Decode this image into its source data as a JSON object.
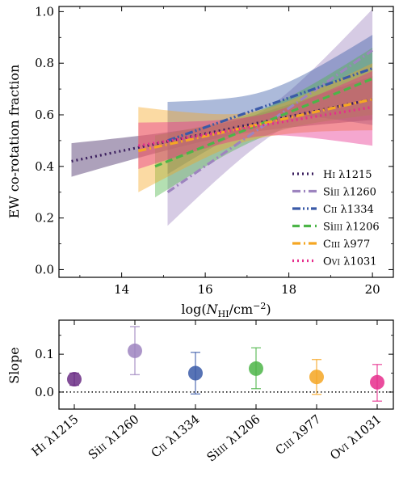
{
  "chart_data": [
    {
      "type": "line",
      "xlabel": "log(N_HI/cm^-2)",
      "ylabel": "EW co-rotation fraction",
      "xlim": [
        12.5,
        20.5
      ],
      "ylim": [
        -0.03,
        1.02
      ],
      "xticks": [
        "14",
        "16",
        "18",
        "20"
      ],
      "yticks": [
        "0.0",
        "0.2",
        "0.4",
        "0.6",
        "0.8",
        "1.0"
      ],
      "legend_position": "lower right",
      "series": [
        {
          "name": "H I λ1215",
          "color": "#3b1f5e",
          "style": "dotted",
          "x": [
            12.8,
            20.0
          ],
          "y": [
            0.42,
            0.66
          ],
          "band_lo": [
            0.36,
            0.58
          ],
          "band_hi": [
            0.49,
            0.75
          ]
        },
        {
          "name": "Si II λ1260",
          "color": "#9d84bf",
          "style": "dashdot",
          "x": [
            15.1,
            20.0
          ],
          "y": [
            0.3,
            0.85
          ],
          "band_lo": [
            0.17,
            0.67
          ],
          "band_hi": [
            0.47,
            1.01
          ]
        },
        {
          "name": "C II λ1334",
          "color": "#3a5aa8",
          "style": "dashdotdot",
          "x": [
            15.1,
            20.0
          ],
          "y": [
            0.5,
            0.78
          ],
          "band_lo": [
            0.37,
            0.56
          ],
          "band_hi": [
            0.65,
            0.91
          ]
        },
        {
          "name": "Si III λ1206",
          "color": "#4cb548",
          "style": "dashed",
          "x": [
            14.8,
            20.0
          ],
          "y": [
            0.4,
            0.74
          ],
          "band_lo": [
            0.28,
            0.6
          ],
          "band_hi": [
            0.52,
            0.86
          ]
        },
        {
          "name": "C III λ977",
          "color": "#f5a623",
          "style": "dashdot",
          "x": [
            14.4,
            20.0
          ],
          "y": [
            0.46,
            0.66
          ],
          "band_lo": [
            0.3,
            0.54
          ],
          "band_hi": [
            0.63,
            0.8
          ]
        },
        {
          "name": "O VI λ1031",
          "color": "#e62d8c",
          "style": "dotted",
          "x": [
            14.4,
            20.0
          ],
          "y": [
            0.48,
            0.63
          ],
          "band_lo": [
            0.39,
            0.48
          ],
          "band_hi": [
            0.57,
            0.77
          ]
        }
      ]
    },
    {
      "type": "scatter",
      "xlabel": "",
      "ylabel": "Slope",
      "ylim": [
        -0.045,
        0.19
      ],
      "yticks": [
        "0.0",
        "0.1"
      ],
      "reference_line": 0.0,
      "categories": [
        "H I λ1215",
        "Si II λ1260",
        "C II λ1334",
        "Si III λ1206",
        "C III λ977",
        "O VI λ1031"
      ],
      "values": [
        0.034,
        0.109,
        0.05,
        0.062,
        0.04,
        0.026
      ],
      "err_lo": [
        0.016,
        0.063,
        0.055,
        0.053,
        0.046,
        0.05
      ],
      "err_hi": [
        0.016,
        0.064,
        0.055,
        0.055,
        0.046,
        0.047
      ],
      "colors": [
        "#6b2e85",
        "#9d84bf",
        "#3a5aa8",
        "#4cb548",
        "#f5a623",
        "#e62d8c"
      ]
    }
  ]
}
